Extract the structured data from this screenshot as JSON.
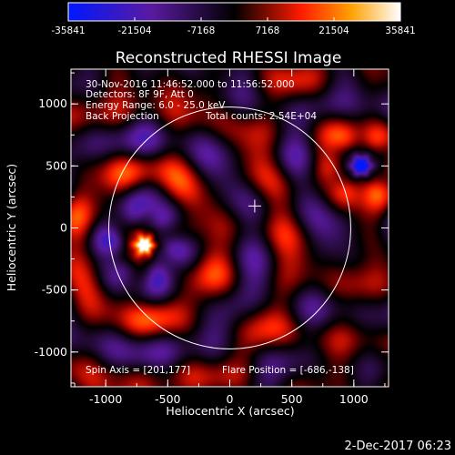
{
  "colorbar": {
    "ticks": [
      "-35841",
      "-21504",
      "-7168",
      "7168",
      "21504",
      "35841"
    ],
    "min": -35841,
    "max": 35841
  },
  "chart_data": {
    "type": "heatmap",
    "title": "Reconstructed RHESSI Image",
    "xlabel": "Heliocentric X (arcsec)",
    "ylabel": "Heliocentric Y (arcsec)",
    "xlim": [
      -1280,
      1280
    ],
    "ylim": [
      -1280,
      1280
    ],
    "xticks": [
      -1000,
      -500,
      0,
      500,
      1000
    ],
    "yticks": [
      1000,
      500,
      0,
      -500,
      -1000
    ],
    "xtick_labels": [
      "-1000",
      "-500",
      "0",
      "500",
      "1000"
    ],
    "ytick_labels": [
      "1000",
      "500",
      "0",
      "-500",
      "-1000"
    ],
    "solar_limb_radius_arcsec": 975,
    "sun_center_marker": [
      201,
      177
    ],
    "sources": [
      {
        "x": -686,
        "y": -138,
        "sign": "positive peak"
      },
      {
        "x": 1060,
        "y": 500,
        "sign": "negative peak"
      }
    ],
    "annotations": {
      "time_range": "30-Nov-2016 11:46:52.000 to 11:56:52.000",
      "detectors": "Detectors: 8F 9F, Att 0",
      "energy": "Energy Range: 6.0 - 25.0 keV",
      "method": "Back Projection",
      "counts": "Total counts: 2.54E+04",
      "spin_axis": "Spin Axis = [201,177]",
      "flare_position": "Flare Position = [-686,-138]"
    },
    "footer_date": "2-Dec-2017 06:23"
  }
}
